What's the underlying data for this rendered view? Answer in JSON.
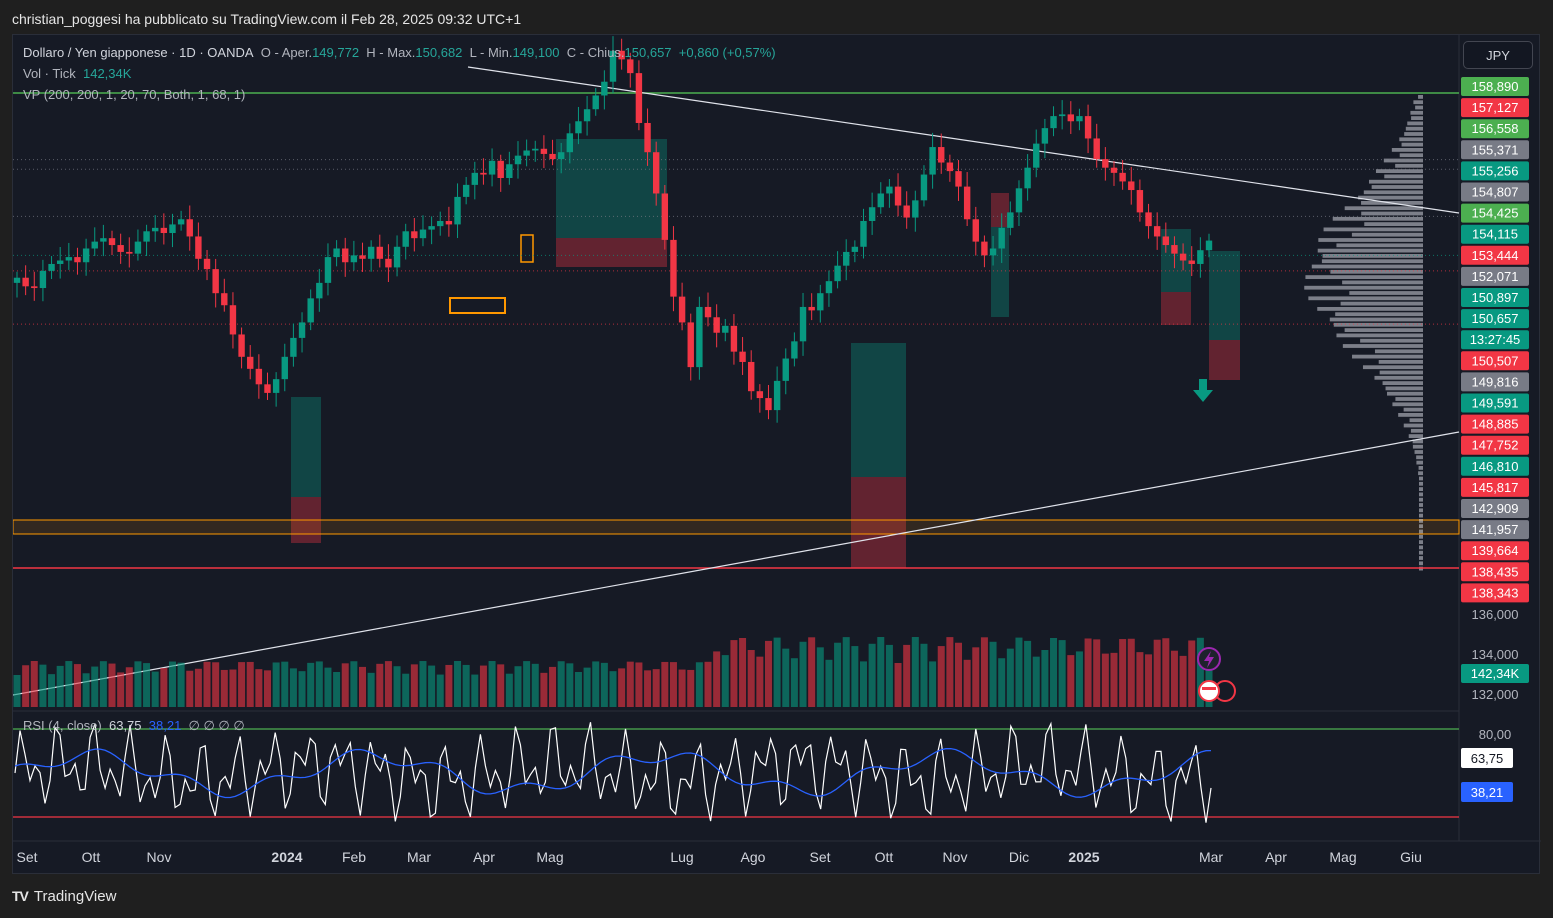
{
  "caption": "christian_poggesi ha pubblicato su TradingView.com il Feb 28, 2025 09:32 UTC+1",
  "legend": {
    "symbol": "Dollaro / Yen giapponese · 1D · OANDA",
    "o_label": "O - Aper.",
    "o_val": "149,772",
    "h_label": "H - Max.",
    "h_val": "150,682",
    "l_label": "L - Min.",
    "l_val": "149,100",
    "c_label": "C - Chius.",
    "c_val": "150,657",
    "change": "+0,860 (+0,57%)",
    "vol_label": "Vol · Tick",
    "vol_val": "142,34K",
    "vp_label": "VP (200, 200, 1, 20, 70, Both, 1, 68, 1)",
    "rsi_label": "RSI (4, close)",
    "rsi_val": "63,75",
    "rsi_ma": "38,21",
    "rsi_extra": "∅ ∅ ∅ ∅"
  },
  "currency_button": "JPY",
  "footer": {
    "brand": "TradingView",
    "logo": "TV"
  },
  "chart_data": {
    "type": "candlestick",
    "symbol": "USDJPY",
    "timeframe": "1D",
    "ylim": [
      131.5,
      160.0
    ],
    "x_ticks": [
      "Set",
      "Ott",
      "Nov",
      "2024",
      "Feb",
      "Mar",
      "Apr",
      "Mag",
      "Lug",
      "Ago",
      "Set",
      "Ott",
      "Nov",
      "Dic",
      "2025",
      "Mar",
      "Apr",
      "Mag",
      "Giu"
    ],
    "volume_ticks": [
      "136,000",
      "134,000",
      "132,000"
    ],
    "price_labels": [
      {
        "value": "158,890",
        "color": "#4caf50"
      },
      {
        "value": "157,127",
        "color": "#f23645"
      },
      {
        "value": "156,558",
        "color": "#4caf50"
      },
      {
        "value": "155,371",
        "color": "#787b86"
      },
      {
        "value": "155,256",
        "color": "#089981"
      },
      {
        "value": "154,807",
        "color": "#787b86"
      },
      {
        "value": "154,425",
        "color": "#4caf50"
      },
      {
        "value": "154,115",
        "color": "#089981"
      },
      {
        "value": "153,444",
        "color": "#f23645"
      },
      {
        "value": "152,071",
        "color": "#787b86"
      },
      {
        "value": "150,897",
        "color": "#089981"
      },
      {
        "value": "150,657",
        "color": "#089981"
      },
      {
        "value": "13:27:45",
        "color": "#089981"
      },
      {
        "value": "150,507",
        "color": "#f23645"
      },
      {
        "value": "149,816",
        "color": "#787b86"
      },
      {
        "value": "149,591",
        "color": "#089981"
      },
      {
        "value": "148,885",
        "color": "#f23645"
      },
      {
        "value": "147,752",
        "color": "#f23645"
      },
      {
        "value": "146,810",
        "color": "#089981"
      },
      {
        "value": "145,817",
        "color": "#f23645"
      },
      {
        "value": "142,909",
        "color": "#787b86"
      },
      {
        "value": "141,957",
        "color": "#787b86"
      },
      {
        "value": "139,664",
        "color": "#f23645"
      },
      {
        "value": "138,435",
        "color": "#f23645"
      },
      {
        "value": "138,343",
        "color": "#f23645"
      }
    ],
    "volume_label": "142,34K",
    "rsi_axis": "80,00",
    "rsi_value": "63,75",
    "rsi_ma": "38,21",
    "close_series": [
      148.5,
      148.0,
      147.9,
      148.9,
      149.3,
      149.5,
      149.7,
      149.4,
      150.2,
      150.6,
      150.8,
      150.4,
      150.0,
      149.9,
      150.6,
      151.2,
      151.4,
      151.1,
      151.6,
      151.9,
      150.9,
      149.6,
      149.0,
      147.6,
      146.9,
      145.2,
      143.9,
      143.2,
      142.3,
      141.8,
      142.6,
      143.9,
      145.0,
      145.9,
      147.3,
      148.2,
      149.7,
      150.2,
      149.4,
      149.8,
      149.6,
      150.3,
      149.6,
      149.1,
      150.3,
      151.2,
      150.8,
      151.3,
      151.5,
      151.8,
      151.6,
      153.2,
      153.9,
      154.6,
      154.5,
      155.3,
      154.3,
      155.1,
      155.6,
      155.9,
      156.0,
      155.7,
      155.4,
      155.8,
      156.9,
      157.6,
      158.3,
      159.1,
      159.9,
      161.7,
      161.2,
      160.4,
      157.5,
      155.8,
      153.4,
      150.7,
      147.4,
      145.9,
      143.3,
      146.8,
      146.2,
      145.3,
      145.7,
      144.2,
      143.6,
      141.9,
      141.5,
      140.8,
      142.5,
      143.8,
      144.8,
      146.8,
      146.6,
      147.6,
      148.3,
      149.2,
      150.0,
      150.3,
      151.8,
      152.6,
      153.4,
      153.8,
      152.7,
      152.0,
      153.0,
      154.5,
      156.1,
      155.2,
      154.7,
      153.8,
      151.9,
      150.6,
      149.8,
      150.2,
      151.4,
      152.3,
      153.7,
      154.9,
      156.3,
      157.2,
      157.9,
      158.0,
      157.6,
      157.9,
      156.6,
      155.4,
      154.9,
      154.6,
      154.1,
      153.6,
      152.3,
      151.5,
      150.9,
      150.4,
      149.9,
      149.5,
      149.3,
      150.1,
      150.66
    ]
  }
}
